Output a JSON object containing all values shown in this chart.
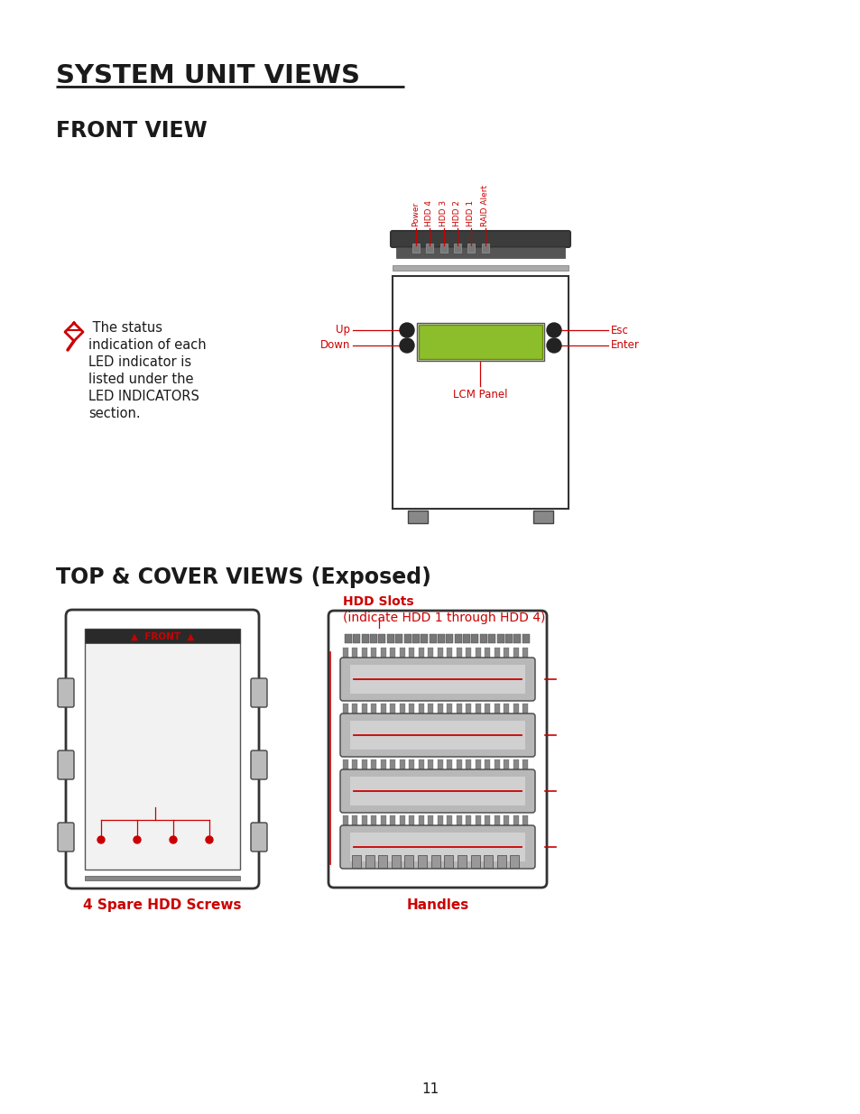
{
  "bg_color": "#ffffff",
  "title": "SYSTEM UNIT VIEWS",
  "section1": "FRONT VIEW",
  "section2": "TOP & COVER VIEWS (Exposed)",
  "red_color": "#cc0000",
  "black_color": "#1a1a1a",
  "dark_color": "#2a2a2a",
  "mid_gray": "#666666",
  "light_gray": "#cccccc",
  "green_lcd": "#8cbe2c",
  "page_number": "11",
  "note_line1": " The status",
  "note_line2": "indication of each",
  "note_line3": "LED indicator is",
  "note_line4": "listed under the",
  "note_line5": "LED INDICATORS",
  "note_line6": "section.",
  "led_labels_left_to_right": [
    "Power",
    "HDD 4",
    "HDD 3",
    "HDD 2",
    "HDD 1",
    "RAID Alert"
  ],
  "hdd_slots_line1": "HDD Slots",
  "hdd_slots_line2": "(indicate HDD 1 through HDD 4)",
  "spare_screws_label": "4 Spare HDD Screws",
  "handles_label": "Handles",
  "up_label": "Up",
  "down_label": "Down",
  "esc_label": "Esc",
  "enter_label": "Enter",
  "lcm_label": "LCM Panel"
}
